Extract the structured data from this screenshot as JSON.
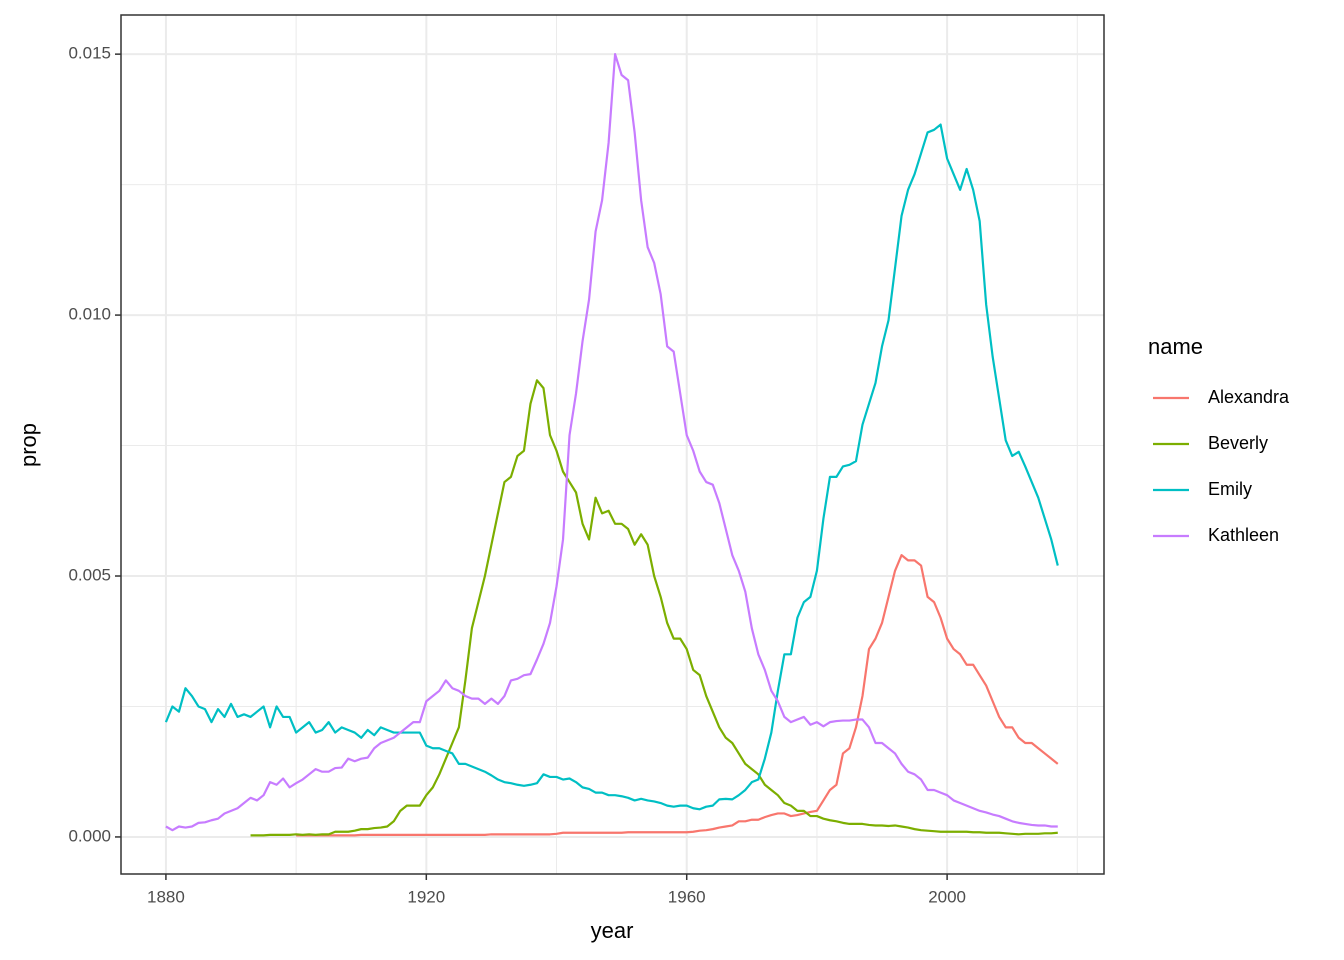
{
  "chart_data": {
    "type": "line",
    "x_label": "year",
    "y_label": "prop",
    "legend_title": "name",
    "legend": "right",
    "grid": true,
    "xlim": [
      1873.1,
      2024.1
    ],
    "ylim": [
      -0.00071,
      0.01575
    ],
    "xticks": [
      1880,
      1920,
      1960,
      2000
    ],
    "yticks": [
      {
        "value": 0,
        "label": "0.000"
      },
      0.005,
      {
        "value": 0.01,
        "label": "0.010"
      },
      0.015
    ],
    "x": [
      1880,
      1881,
      1882,
      1883,
      1884,
      1885,
      1886,
      1887,
      1888,
      1889,
      1890,
      1891,
      1892,
      1893,
      1894,
      1895,
      1896,
      1897,
      1898,
      1899,
      1900,
      1901,
      1902,
      1903,
      1904,
      1905,
      1906,
      1907,
      1908,
      1909,
      1910,
      1911,
      1912,
      1913,
      1914,
      1915,
      1916,
      1917,
      1918,
      1919,
      1920,
      1921,
      1922,
      1923,
      1924,
      1925,
      1926,
      1927,
      1928,
      1929,
      1930,
      1931,
      1932,
      1933,
      1934,
      1935,
      1936,
      1937,
      1938,
      1939,
      1940,
      1941,
      1942,
      1943,
      1944,
      1945,
      1946,
      1947,
      1948,
      1949,
      1950,
      1951,
      1952,
      1953,
      1954,
      1955,
      1956,
      1957,
      1958,
      1959,
      1960,
      1961,
      1962,
      1963,
      1964,
      1965,
      1966,
      1967,
      1968,
      1969,
      1970,
      1971,
      1972,
      1973,
      1974,
      1975,
      1976,
      1977,
      1978,
      1979,
      1980,
      1981,
      1982,
      1983,
      1984,
      1985,
      1986,
      1987,
      1988,
      1989,
      1990,
      1991,
      1992,
      1993,
      1994,
      1995,
      1996,
      1997,
      1998,
      1999,
      2000,
      2001,
      2002,
      2003,
      2004,
      2005,
      2006,
      2007,
      2008,
      2009,
      2010,
      2011,
      2012,
      2013,
      2014,
      2015,
      2016,
      2017
    ],
    "series": [
      {
        "name": "Alexandra",
        "color": "#F8766D",
        "values": [
          null,
          null,
          null,
          null,
          null,
          null,
          null,
          null,
          null,
          null,
          null,
          null,
          null,
          null,
          null,
          null,
          null,
          null,
          null,
          null,
          3e-05,
          3e-05,
          3e-05,
          3e-05,
          3e-05,
          3e-05,
          3e-05,
          3e-05,
          3e-05,
          3e-05,
          4e-05,
          4e-05,
          4e-05,
          4e-05,
          4e-05,
          4e-05,
          4e-05,
          4e-05,
          4e-05,
          4e-05,
          4e-05,
          4e-05,
          4e-05,
          4e-05,
          4e-05,
          4e-05,
          4e-05,
          4e-05,
          4e-05,
          4e-05,
          5e-05,
          5e-05,
          5e-05,
          5e-05,
          5e-05,
          5e-05,
          5e-05,
          5e-05,
          5e-05,
          5e-05,
          6e-05,
          8e-05,
          8e-05,
          8e-05,
          8e-05,
          8e-05,
          8e-05,
          8e-05,
          8e-05,
          8e-05,
          8e-05,
          9e-05,
          9e-05,
          9e-05,
          9e-05,
          9e-05,
          9e-05,
          9e-05,
          9e-05,
          9e-05,
          9e-05,
          0.0001,
          0.00012,
          0.00013,
          0.00015,
          0.00018,
          0.0002,
          0.00022,
          0.0003,
          0.0003,
          0.00033,
          0.00033,
          0.00038,
          0.00042,
          0.00045,
          0.00045,
          0.0004,
          0.00042,
          0.00045,
          0.00048,
          0.0005,
          0.0007,
          0.0009,
          0.001,
          0.0016,
          0.0017,
          0.0021,
          0.0027,
          0.0036,
          0.0038,
          0.0041,
          0.0046,
          0.0051,
          0.0054,
          0.0053,
          0.0053,
          0.0052,
          0.0046,
          0.0045,
          0.0042,
          0.0038,
          0.0036,
          0.0035,
          0.0033,
          0.0033,
          0.0031,
          0.0029,
          0.0026,
          0.0023,
          0.0021,
          0.0021,
          0.0019,
          0.0018,
          0.0018,
          0.0017,
          0.0016,
          0.0015,
          0.0014
        ]
      },
      {
        "name": "Beverly",
        "color": "#7CAE00",
        "values": [
          null,
          null,
          null,
          null,
          null,
          null,
          null,
          null,
          null,
          null,
          null,
          null,
          null,
          3e-05,
          3e-05,
          3e-05,
          4e-05,
          4e-05,
          4e-05,
          4e-05,
          5e-05,
          4e-05,
          5e-05,
          4e-05,
          5e-05,
          5e-05,
          0.0001,
          0.0001,
          0.0001,
          0.00012,
          0.00015,
          0.00015,
          0.00017,
          0.00018,
          0.0002,
          0.0003,
          0.0005,
          0.0006,
          0.0006,
          0.0006,
          0.0008,
          0.00095,
          0.0012,
          0.0015,
          0.0018,
          0.0021,
          0.003,
          0.004,
          0.0045,
          0.005,
          0.0056,
          0.0062,
          0.0068,
          0.0069,
          0.0073,
          0.0074,
          0.0083,
          0.00875,
          0.0086,
          0.0077,
          0.0074,
          0.007,
          0.0068,
          0.0066,
          0.006,
          0.0057,
          0.0065,
          0.0062,
          0.00625,
          0.006,
          0.006,
          0.0059,
          0.0056,
          0.0058,
          0.0056,
          0.005,
          0.0046,
          0.0041,
          0.0038,
          0.0038,
          0.0036,
          0.0032,
          0.0031,
          0.0027,
          0.0024,
          0.0021,
          0.0019,
          0.0018,
          0.0016,
          0.0014,
          0.0013,
          0.0012,
          0.001,
          0.0009,
          0.0008,
          0.00065,
          0.0006,
          0.0005,
          0.0005,
          0.0004,
          0.0004,
          0.00035,
          0.00032,
          0.0003,
          0.00027,
          0.00025,
          0.00025,
          0.00025,
          0.00023,
          0.00022,
          0.00022,
          0.00021,
          0.00022,
          0.0002,
          0.00018,
          0.00015,
          0.00013,
          0.00012,
          0.00011,
          0.0001,
          0.0001,
          0.0001,
          0.0001,
          0.0001,
          9e-05,
          9e-05,
          8e-05,
          8e-05,
          8e-05,
          7e-05,
          6e-05,
          5e-05,
          6e-05,
          6e-05,
          6e-05,
          7e-05,
          7e-05,
          8e-05
        ]
      },
      {
        "name": "Emily",
        "color": "#00BFC4",
        "values": [
          0.0022,
          0.0025,
          0.0024,
          0.00285,
          0.0027,
          0.0025,
          0.00245,
          0.0022,
          0.00245,
          0.0023,
          0.00255,
          0.0023,
          0.00235,
          0.0023,
          0.0024,
          0.0025,
          0.0021,
          0.0025,
          0.0023,
          0.0023,
          0.002,
          0.0021,
          0.0022,
          0.002,
          0.00205,
          0.0022,
          0.002,
          0.0021,
          0.00205,
          0.002,
          0.0019,
          0.00205,
          0.00195,
          0.0021,
          0.00205,
          0.002,
          0.002,
          0.002,
          0.002,
          0.002,
          0.00175,
          0.0017,
          0.0017,
          0.00165,
          0.0016,
          0.0014,
          0.0014,
          0.00135,
          0.0013,
          0.00125,
          0.00118,
          0.0011,
          0.00105,
          0.00103,
          0.001,
          0.00098,
          0.001,
          0.00103,
          0.0012,
          0.00115,
          0.00115,
          0.0011,
          0.00112,
          0.00105,
          0.00095,
          0.00092,
          0.00085,
          0.00085,
          0.0008,
          0.0008,
          0.00078,
          0.00075,
          0.0007,
          0.00073,
          0.0007,
          0.00068,
          0.00065,
          0.0006,
          0.00058,
          0.0006,
          0.0006,
          0.00055,
          0.00053,
          0.00058,
          0.0006,
          0.00072,
          0.00073,
          0.00072,
          0.0008,
          0.0009,
          0.00105,
          0.0011,
          0.0015,
          0.002,
          0.0028,
          0.0035,
          0.0035,
          0.0042,
          0.0045,
          0.0046,
          0.0051,
          0.0061,
          0.0069,
          0.0069,
          0.0071,
          0.00713,
          0.0072,
          0.0079,
          0.0083,
          0.0087,
          0.0094,
          0.0099,
          0.0109,
          0.0119,
          0.0124,
          0.0127,
          0.0131,
          0.0135,
          0.01355,
          0.01365,
          0.013,
          0.0127,
          0.0124,
          0.0128,
          0.0124,
          0.0118,
          0.0102,
          0.0092,
          0.0084,
          0.0076,
          0.0073,
          0.00738,
          0.0071,
          0.0068,
          0.0065,
          0.0061,
          0.0057,
          0.0052
        ]
      },
      {
        "name": "Kathleen",
        "color": "#C77CFF",
        "values": [
          0.0002,
          0.00013,
          0.0002,
          0.00018,
          0.0002,
          0.00027,
          0.00028,
          0.00032,
          0.00035,
          0.00045,
          0.0005,
          0.00055,
          0.00065,
          0.00075,
          0.0007,
          0.0008,
          0.00105,
          0.001,
          0.00112,
          0.00095,
          0.00103,
          0.0011,
          0.0012,
          0.0013,
          0.00125,
          0.00125,
          0.00132,
          0.00133,
          0.0015,
          0.00145,
          0.0015,
          0.00152,
          0.0017,
          0.0018,
          0.00185,
          0.0019,
          0.002,
          0.0021,
          0.0022,
          0.0022,
          0.0026,
          0.0027,
          0.0028,
          0.003,
          0.00285,
          0.0028,
          0.0027,
          0.00265,
          0.00265,
          0.00255,
          0.00265,
          0.00255,
          0.0027,
          0.003,
          0.00303,
          0.0031,
          0.00312,
          0.0034,
          0.0037,
          0.0041,
          0.0048,
          0.0057,
          0.0077,
          0.0085,
          0.0095,
          0.0103,
          0.0116,
          0.0122,
          0.0133,
          0.015,
          0.0146,
          0.0145,
          0.0135,
          0.0122,
          0.0113,
          0.011,
          0.0104,
          0.0094,
          0.0093,
          0.0085,
          0.0077,
          0.0074,
          0.007,
          0.0068,
          0.00675,
          0.0064,
          0.0059,
          0.0054,
          0.0051,
          0.0047,
          0.004,
          0.0035,
          0.0032,
          0.0028,
          0.0026,
          0.0023,
          0.0022,
          0.00225,
          0.0023,
          0.00215,
          0.0022,
          0.00212,
          0.0022,
          0.00222,
          0.00223,
          0.00223,
          0.00225,
          0.00225,
          0.0021,
          0.0018,
          0.0018,
          0.0017,
          0.0016,
          0.0014,
          0.00125,
          0.0012,
          0.0011,
          0.0009,
          0.0009,
          0.00085,
          0.0008,
          0.0007,
          0.00065,
          0.0006,
          0.00055,
          0.0005,
          0.00047,
          0.00043,
          0.0004,
          0.00035,
          0.0003,
          0.00027,
          0.00025,
          0.00023,
          0.00022,
          0.00022,
          0.0002,
          0.0002
        ]
      }
    ]
  }
}
